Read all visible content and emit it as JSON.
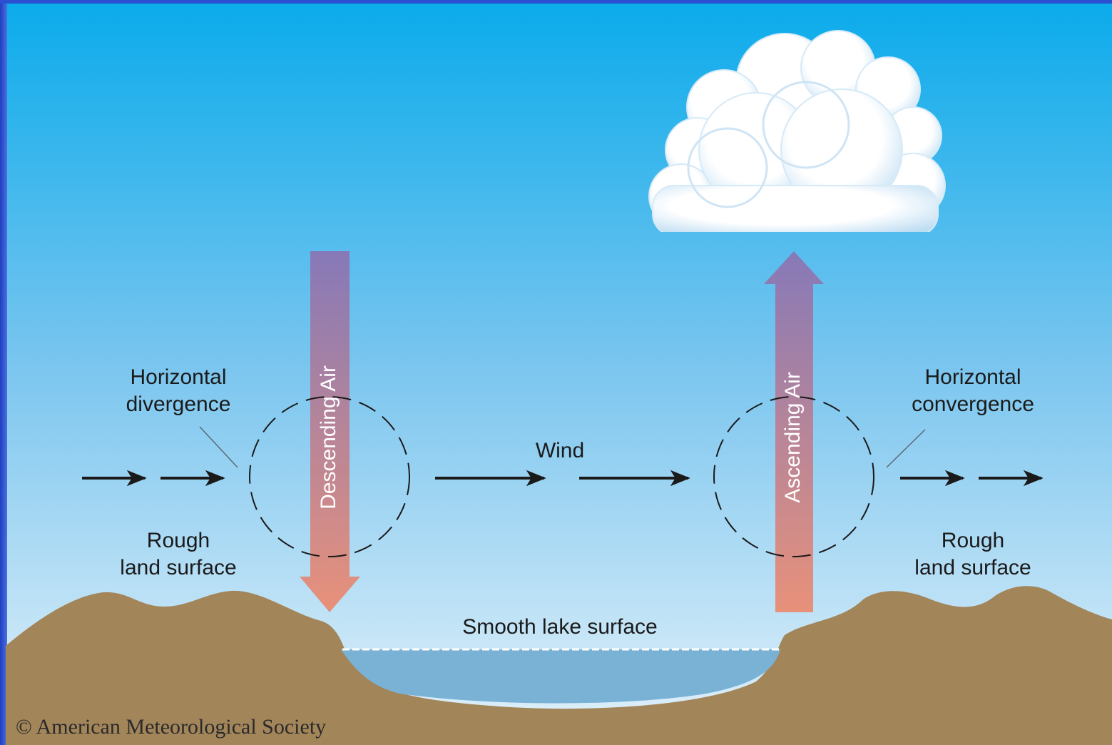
{
  "divergence_label": [
    "Horizontal",
    "divergence"
  ],
  "descending_air": "Descending Air",
  "wind": "Wind",
  "ascending_air": "Ascending Air",
  "convergence_label": [
    "Horizontal",
    "convergence"
  ],
  "left_land_label": [
    "Rough",
    "land surface"
  ],
  "right_land_label": [
    "Rough",
    "land surface"
  ],
  "lake_label": "Smooth lake surface",
  "copyright": "© American Meteorological Society"
}
